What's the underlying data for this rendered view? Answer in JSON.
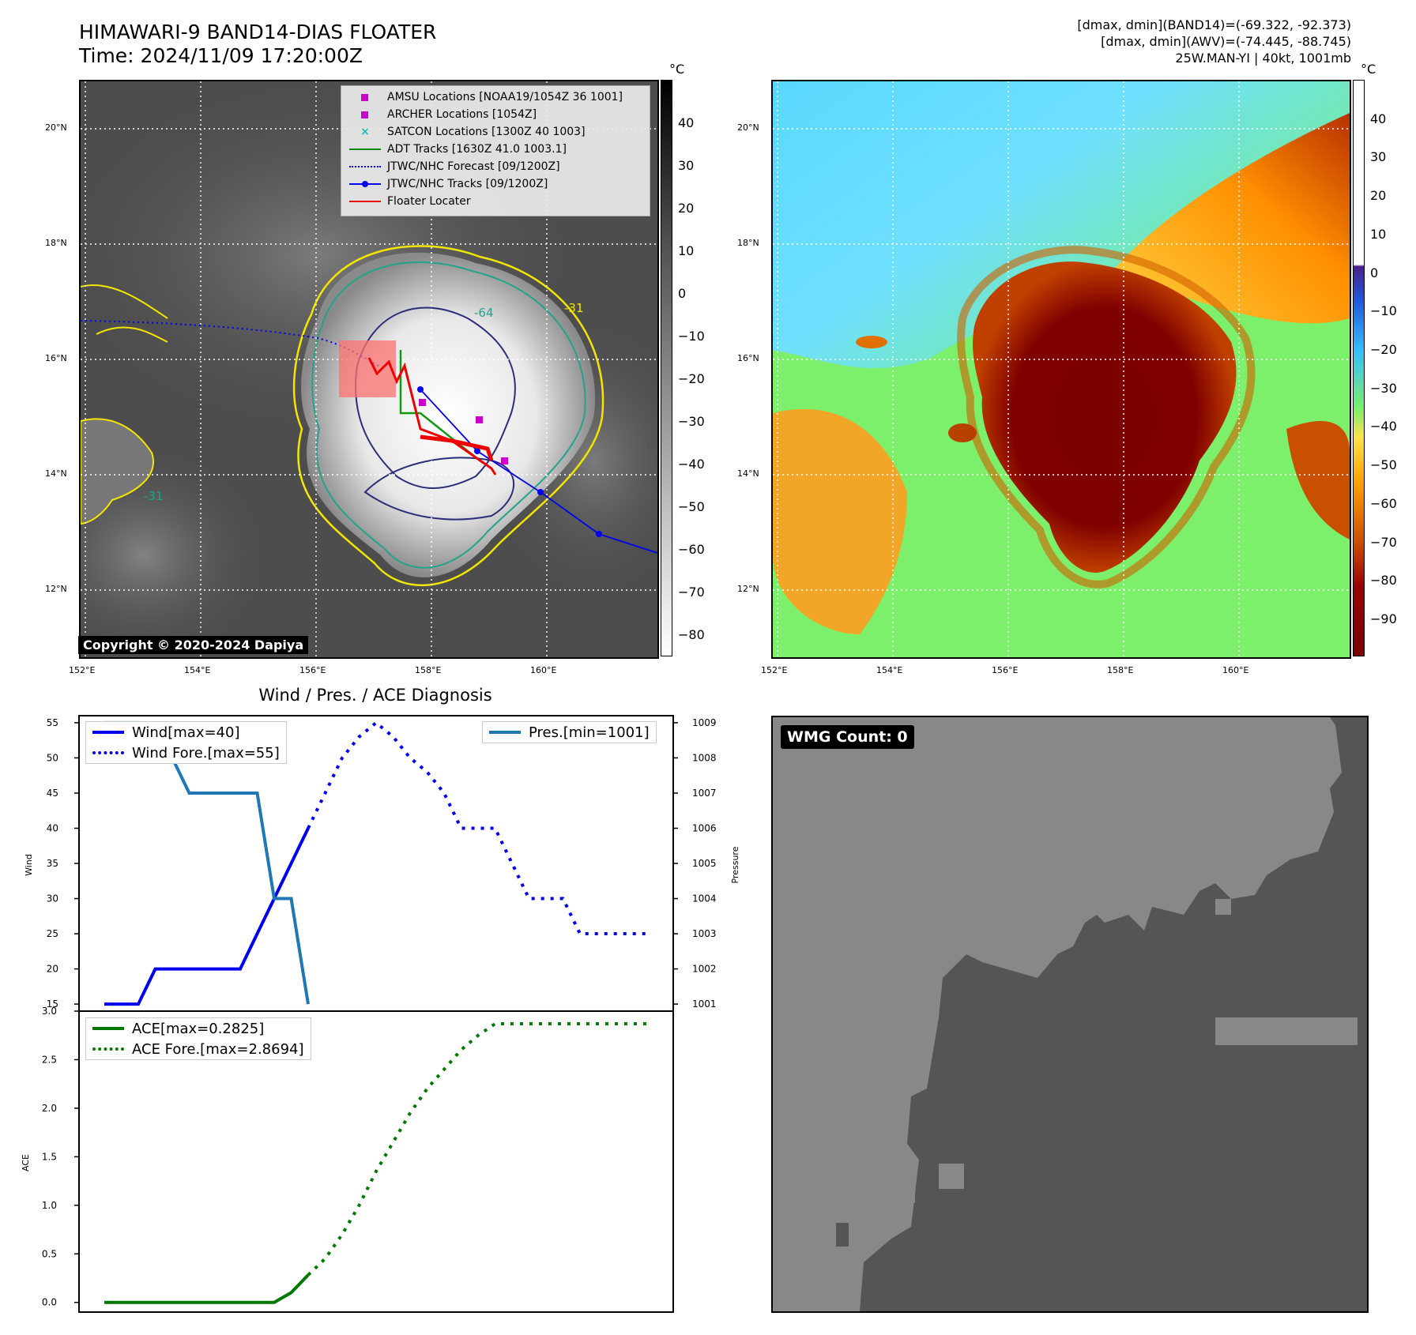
{
  "header": {
    "title_line1": "HIMAWARI-9 BAND14-DIAS FLOATER",
    "title_line2": "Time: 2024/11/09 17:20:00Z",
    "info_line1": "[dmax, dmin](BAND14)=(-69.322, -92.373)",
    "info_line2": "[dmax, dmin](AWV)=(-74.445, -88.745)",
    "info_line3": "25W.MAN-YI | 40kt, 1001mb"
  },
  "map": {
    "lat_labels": [
      "20°N",
      "18°N",
      "16°N",
      "14°N",
      "12°N"
    ],
    "lon_labels": [
      "152°E",
      "154°E",
      "156°E",
      "158°E",
      "160°E"
    ],
    "copyright": "Copyright © 2020-2024 Dapiya",
    "contour_labels": [
      "-31",
      "-64",
      "-31"
    ],
    "legend": [
      {
        "label": "AMSU Locations [NOAA19/1054Z 36 1001]",
        "color": "#cc00cc"
      },
      {
        "label": "ARCHER Locations [1054Z]",
        "color": "#cc00cc"
      },
      {
        "label": "SATCON Locations [1300Z 40 1003]",
        "color": "#22bbbb"
      },
      {
        "label": "ADT Tracks [1630Z 41.0 1003.1]",
        "color": "#118811"
      },
      {
        "label": "JTWC/NHC Forecast [09/1200Z]",
        "color": "#0000ee"
      },
      {
        "label": "JTWC/NHC Tracks [09/1200Z]",
        "color": "#0000ee"
      },
      {
        "label": "Floater Locater",
        "color": "#ee0000"
      }
    ]
  },
  "colorbar1": {
    "unit": "°C",
    "ticks": [
      "40",
      "30",
      "20",
      "10",
      "0",
      "−10",
      "−20",
      "−30",
      "−40",
      "−50",
      "−60",
      "−70",
      "−80"
    ]
  },
  "colorbar2": {
    "unit": "°C",
    "ticks": [
      "40",
      "30",
      "20",
      "10",
      "0",
      "−10",
      "−20",
      "−30",
      "−40",
      "−50",
      "−60",
      "−70",
      "−80",
      "−90"
    ]
  },
  "chart_data": [
    {
      "type": "line",
      "title": "Wind / Pres. / ACE Diagnosis",
      "ylabel": "Wind",
      "y2label": "Pressure",
      "ylim": [
        14,
        56
      ],
      "y2lim": [
        1000.8,
        1009.2
      ],
      "yticks": [
        15,
        20,
        25,
        30,
        35,
        40,
        45,
        50,
        55
      ],
      "y2ticks": [
        1001,
        1002,
        1003,
        1004,
        1005,
        1006,
        1007,
        1008,
        1009
      ],
      "series": [
        {
          "name": "Wind[max=40]",
          "color": "#0000ee",
          "style": "solid",
          "x": [
            0,
            2,
            3,
            4,
            5,
            6,
            7,
            8,
            9,
            10,
            11,
            12
          ],
          "values": [
            15,
            15,
            20,
            20,
            20,
            20,
            20,
            20,
            25,
            30,
            35,
            40
          ]
        },
        {
          "name": "Wind Fore.[max=55]",
          "color": "#0000ee",
          "style": "dotted",
          "x": [
            12,
            13,
            14,
            15,
            16,
            17,
            18,
            19,
            20,
            21,
            22,
            23,
            24,
            25,
            26,
            27,
            28,
            29,
            30,
            31,
            32
          ],
          "values": [
            40,
            45,
            50,
            53,
            55,
            53,
            50,
            48,
            45,
            40,
            40,
            40,
            35,
            30,
            30,
            30,
            25,
            25,
            25,
            25,
            25
          ]
        },
        {
          "name": "Pres.[min=1001]",
          "color": "#1f77b4",
          "style": "solid",
          "axis": "y2",
          "x": [
            0,
            2,
            3,
            4,
            5,
            6,
            7,
            8,
            9,
            10,
            11,
            12
          ],
          "values": [
            1009,
            1009,
            1008,
            1008,
            1007,
            1007,
            1007,
            1007,
            1007,
            1004,
            1004,
            1001
          ]
        }
      ]
    },
    {
      "type": "line",
      "ylabel": "ACE",
      "ylim": [
        -0.1,
        3.0
      ],
      "yticks": [
        "0.0",
        "0.5",
        "1.0",
        "1.5",
        "2.0",
        "2.5",
        "3.0"
      ],
      "series": [
        {
          "name": "ACE[max=0.2825]",
          "color": "#007700",
          "style": "solid",
          "x": [
            0,
            2,
            4,
            6,
            8,
            9,
            10,
            11,
            12
          ],
          "values": [
            0,
            0,
            0,
            0,
            0,
            0,
            0,
            0.1,
            0.2825
          ]
        },
        {
          "name": "ACE Fore.[max=2.8694]",
          "color": "#007700",
          "style": "dotted",
          "x": [
            12,
            13,
            14,
            15,
            16,
            17,
            18,
            19,
            20,
            21,
            22,
            23,
            24,
            25,
            26,
            27,
            28,
            29,
            30,
            31,
            32
          ],
          "values": [
            0.2825,
            0.45,
            0.7,
            1.0,
            1.35,
            1.65,
            1.95,
            2.2,
            2.4,
            2.6,
            2.75,
            2.8694,
            2.8694,
            2.8694,
            2.8694,
            2.8694,
            2.8694,
            2.8694,
            2.8694,
            2.8694,
            2.8694
          ]
        }
      ]
    }
  ],
  "wmg": {
    "label": "WMG Count: 0"
  }
}
